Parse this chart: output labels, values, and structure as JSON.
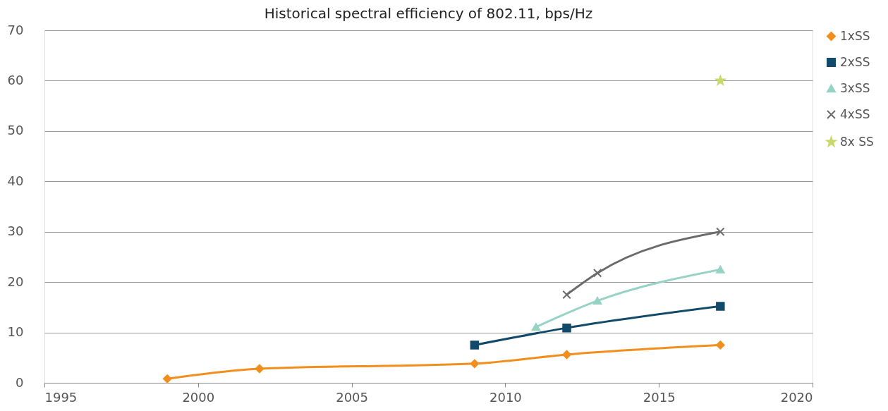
{
  "chart_data": {
    "type": "line",
    "title": "Historical spectral efficiency of 802.11, bps/Hz",
    "xlim": [
      1995,
      2020
    ],
    "xticks": [
      1995,
      2000,
      2005,
      2010,
      2015,
      2020
    ],
    "ylim": [
      0,
      70
    ],
    "yticks": [
      0,
      10,
      20,
      30,
      40,
      50,
      60,
      70
    ],
    "grid": "y",
    "legend": "right",
    "series": [
      {
        "name": "1xSS",
        "color": "#f28e1c",
        "marker": "diamond",
        "x": [
          1999,
          2002,
          2009,
          2012,
          2017
        ],
        "values": [
          0.8,
          2.8,
          3.8,
          5.6,
          7.5
        ]
      },
      {
        "name": "2xSS",
        "color": "#114a6b",
        "marker": "square",
        "x": [
          2009,
          2012,
          2017
        ],
        "values": [
          7.5,
          10.9,
          15.2
        ]
      },
      {
        "name": "3xSS",
        "color": "#97d3c5",
        "marker": "triangle",
        "x": [
          2011,
          2013,
          2017
        ],
        "values": [
          11.1,
          16.3,
          22.5
        ]
      },
      {
        "name": "4xSS",
        "color": "#6b6b6b",
        "marker": "cross",
        "x": [
          2012,
          2013,
          2017
        ],
        "values": [
          17.5,
          21.8,
          30
        ]
      },
      {
        "name": "8x SS",
        "color": "#c9d96a",
        "marker": "star",
        "x": [
          2017
        ],
        "values": [
          60
        ]
      }
    ]
  }
}
